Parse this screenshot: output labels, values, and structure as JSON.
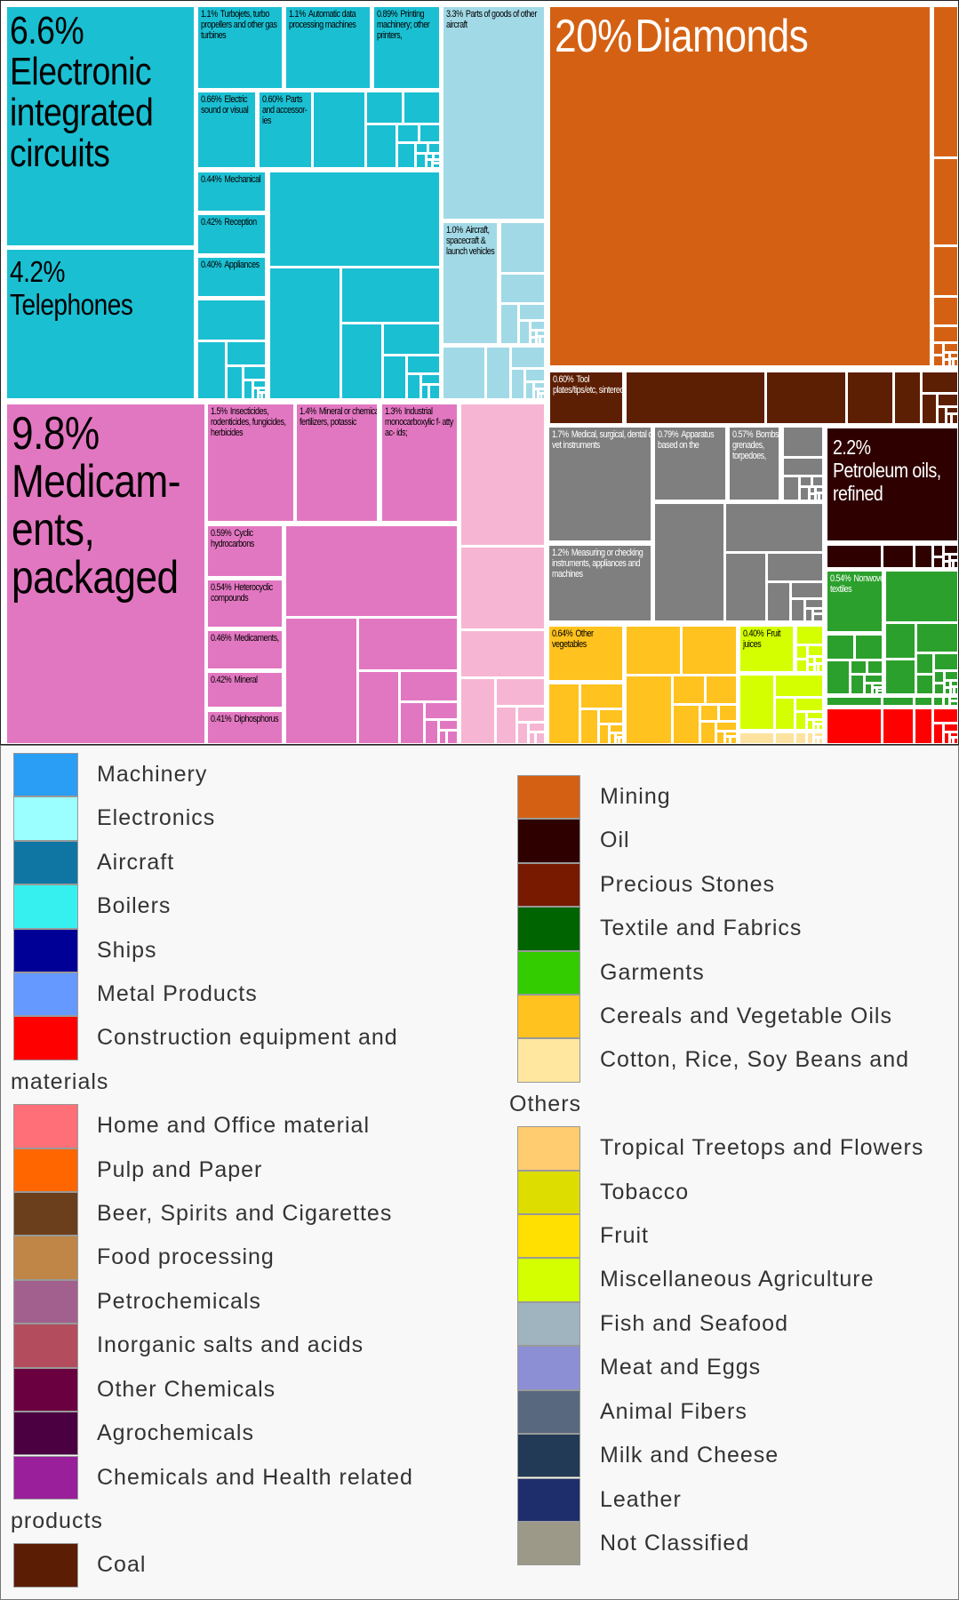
{
  "chart_data": {
    "type": "treemap",
    "cells": [
      {
        "share": "6.6%",
        "label": "Electronic integrated circuits",
        "color": "#1bbfd2"
      },
      {
        "share": "4.2%",
        "label": "Telephones",
        "color": "#1bbfd2"
      },
      {
        "share": "1.1%",
        "label": "Turbojets, turbo propellers and other gas turbines",
        "color": "#1bbfd2"
      },
      {
        "share": "1.1%",
        "label": "Automatic data processing machines",
        "color": "#1bbfd2"
      },
      {
        "share": "0.89%",
        "label": "Printing machinery; other printers,",
        "color": "#1bbfd2"
      },
      {
        "share": "0.66%",
        "label": "Electric sound or visual",
        "color": "#1bbfd2"
      },
      {
        "share": "0.60%",
        "label": "Parts and accessor- ies",
        "color": "#1bbfd2"
      },
      {
        "share": "0.44%",
        "label": "Mechanical",
        "color": "#1bbfd2"
      },
      {
        "share": "0.42%",
        "label": "Reception",
        "color": "#1bbfd2"
      },
      {
        "share": "0.40%",
        "label": "Appliances",
        "color": "#1bbfd2"
      },
      {
        "share": "3.3%",
        "label": "Parts of goods of other aircraft",
        "color": "#a2d9e6"
      },
      {
        "share": "1.0%",
        "label": "Aircraft, spacecraft & launch vehicles",
        "color": "#a2d9e6"
      },
      {
        "share": "20%",
        "label": "Diamonds",
        "color": "#d46113"
      },
      {
        "share": "0.60%",
        "label": "Tool plates/tips/etc, sintered",
        "color": "#5d1f04"
      },
      {
        "share": "9.8%",
        "label": "Medicam-ents, packaged",
        "color": "#e277c1"
      },
      {
        "share": "1.5%",
        "label": "Insecticides, rodenticides, fungicides, herbicides",
        "color": "#e277c1"
      },
      {
        "share": "1.4%",
        "label": "Mineral or chemical fertilizers, potassic",
        "color": "#e277c1"
      },
      {
        "share": "1.3%",
        "label": "Industrial monocarboxylic f- atty ac- ids;",
        "color": "#e277c1"
      },
      {
        "share": "0.59%",
        "label": "Cyclic hydrocarbons",
        "color": "#e277c1"
      },
      {
        "share": "0.54%",
        "label": "Heterocyclic compounds",
        "color": "#e277c1"
      },
      {
        "share": "0.46%",
        "label": "Medicaments,",
        "color": "#e277c1"
      },
      {
        "share": "0.42%",
        "label": "Mineral",
        "color": "#e277c1"
      },
      {
        "share": "0.41%",
        "label": "Diphosphorus",
        "color": "#e277c1"
      },
      {
        "share": "1.7%",
        "label": "Medical, surgical, dental or vet instruments",
        "color": "#7f7f7f"
      },
      {
        "share": "0.79%",
        "label": "Apparatus based on the",
        "color": "#7f7f7f"
      },
      {
        "share": "0.57%",
        "label": "Bombs, grenades, torpedoes,",
        "color": "#7f7f7f"
      },
      {
        "share": "1.2%",
        "label": "Measuring or checking instruments, appliances and machines",
        "color": "#7f7f7f"
      },
      {
        "share": "2.2%",
        "label": "Petroleum oils, refined",
        "color": "#2f0000"
      },
      {
        "share": "0.54%",
        "label": "Nonwoven textiles",
        "color": "#2ca02c"
      },
      {
        "share": "0.64%",
        "label": "Other vegetables",
        "color": "#ffc21e"
      },
      {
        "share": "0.40%",
        "label": "Fruit juices",
        "color": "#d4ff00"
      }
    ],
    "palette": {
      "teal": "#1bbfd2",
      "light_blue": "#a2d9e6",
      "orange": "#d46113",
      "brown": "#5d1f04",
      "pink": "#e277c1",
      "light_pink": "#f6b5d2",
      "gray": "#7f7f7f",
      "oil": "#2f0000",
      "green": "#2ca02c",
      "red": "#ff0000",
      "yellow": "#ffc21e",
      "lime": "#d4ff00",
      "pale": "#fde39f"
    },
    "legend": {
      "left": [
        {
          "label": "Machinery",
          "color": "#2a9df4"
        },
        {
          "label": "Electronics",
          "color": "#9bffff"
        },
        {
          "label": "Aircraft",
          "color": "#0f76a3"
        },
        {
          "label": "Boilers",
          "color": "#36f0f0"
        },
        {
          "label": "Ships",
          "color": "#000096"
        },
        {
          "label": "Metal Products",
          "color": "#6699ff"
        },
        {
          "label": "Construction equipment and materials",
          "color": "#ff0000"
        },
        {
          "label": "Home and Office material",
          "color": "#ff6f78"
        },
        {
          "label": "Pulp and Paper",
          "color": "#ff6600"
        },
        {
          "label": "Beer, Spirits and Cigarettes",
          "color": "#6b3f1c"
        },
        {
          "label": "Food processing",
          "color": "#bf8647"
        },
        {
          "label": "Petrochemicals",
          "color": "#a2608f"
        },
        {
          "label": "Inorganic salts and acids",
          "color": "#b34d5e"
        },
        {
          "label": "Other Chemicals",
          "color": "#6b0040"
        },
        {
          "label": "Agrochemicals",
          "color": "#4a0041"
        },
        {
          "label": "Chemicals and Health related products",
          "color": "#99209a"
        },
        {
          "label": "Coal",
          "color": "#5b1e05"
        }
      ],
      "right": [
        {
          "label": "Mining",
          "color": "#d46113"
        },
        {
          "label": "Oil",
          "color": "#2f0000"
        },
        {
          "label": "Precious Stones",
          "color": "#781a00"
        },
        {
          "label": "Textile and Fabrics",
          "color": "#006400"
        },
        {
          "label": "Garments",
          "color": "#33cc00"
        },
        {
          "label": "Cereals and Vegetable Oils",
          "color": "#ffc21e"
        },
        {
          "label": "Cotton, Rice, Soy Beans and Others",
          "color": "#ffe79f"
        },
        {
          "label": "Tropical Treetops and Flowers",
          "color": "#ffcc70"
        },
        {
          "label": "Tobacco",
          "color": "#dddd00"
        },
        {
          "label": "Fruit",
          "color": "#ffe000"
        },
        {
          "label": "Miscellaneous Agriculture",
          "color": "#d4ff00"
        },
        {
          "label": "Fish and Seafood",
          "color": "#a0b4c0"
        },
        {
          "label": "Meat and Eggs",
          "color": "#8c8fd4"
        },
        {
          "label": "Animal Fibers",
          "color": "#58687e"
        },
        {
          "label": "Milk and Cheese",
          "color": "#223a55"
        },
        {
          "label": "Leather",
          "color": "#1e2d6b"
        },
        {
          "label": "Not Classified",
          "color": "#9c9988"
        }
      ]
    }
  }
}
